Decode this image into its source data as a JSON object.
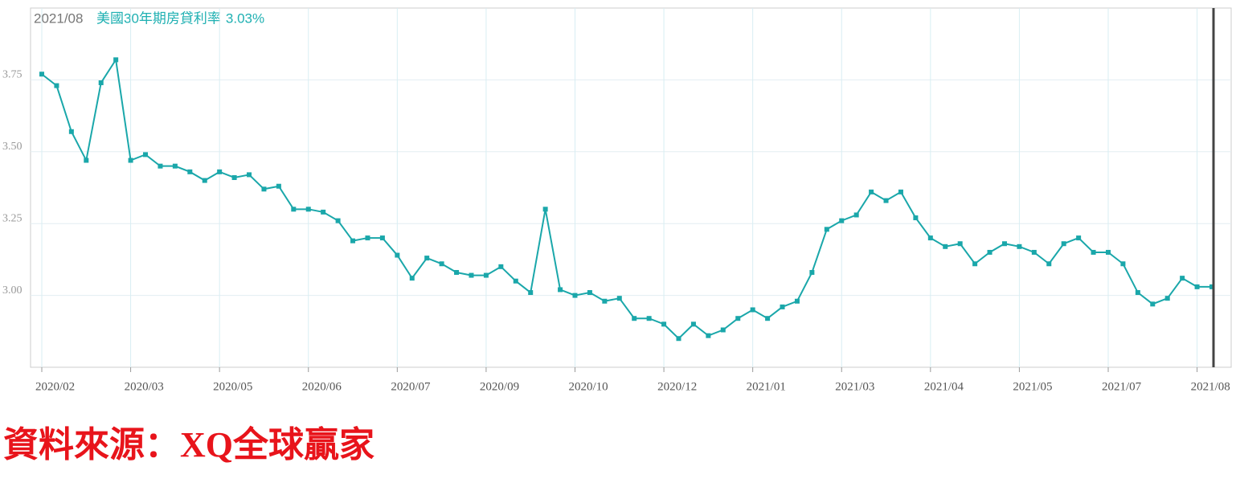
{
  "chart_data": {
    "type": "line",
    "cursor": {
      "label": "2021/08",
      "value_label": "3.03%"
    },
    "categories": [
      "2020/02",
      null,
      null,
      null,
      null,
      null,
      "2020/03",
      null,
      null,
      null,
      null,
      null,
      "2020/05",
      null,
      null,
      null,
      null,
      null,
      "2020/06",
      null,
      null,
      null,
      null,
      null,
      "2020/07",
      null,
      null,
      null,
      null,
      null,
      "2020/09",
      null,
      null,
      null,
      null,
      null,
      "2020/10",
      null,
      null,
      null,
      null,
      null,
      "2020/12",
      null,
      null,
      null,
      null,
      null,
      "2021/01",
      null,
      null,
      null,
      null,
      null,
      "2021/03",
      null,
      null,
      null,
      null,
      null,
      "2021/04",
      null,
      null,
      null,
      null,
      null,
      "2021/05",
      null,
      null,
      null,
      null,
      null,
      "2021/07",
      null,
      null,
      null,
      null,
      null,
      "2021/08",
      null
    ],
    "series": [
      {
        "name": "美國30年期房貸利率",
        "color": "#1aa7aa",
        "values": [
          3.77,
          3.73,
          3.57,
          3.47,
          3.74,
          3.82,
          3.47,
          3.49,
          3.45,
          3.45,
          3.43,
          3.4,
          3.43,
          3.41,
          3.42,
          3.37,
          3.38,
          3.3,
          3.3,
          3.29,
          3.26,
          3.19,
          3.2,
          3.2,
          3.14,
          3.06,
          3.13,
          3.11,
          3.08,
          3.07,
          3.07,
          3.1,
          3.05,
          3.01,
          3.3,
          3.02,
          3.0,
          3.01,
          2.98,
          2.99,
          2.92,
          2.92,
          2.9,
          2.85,
          2.9,
          2.86,
          2.88,
          2.92,
          2.95,
          2.92,
          2.96,
          2.98,
          3.08,
          3.23,
          3.26,
          3.28,
          3.36,
          3.33,
          3.36,
          3.27,
          3.2,
          3.17,
          3.18,
          3.11,
          3.15,
          3.18,
          3.17,
          3.15,
          3.11,
          3.18,
          3.2,
          3.15,
          3.15,
          3.11,
          3.01,
          2.97,
          2.99,
          3.06,
          3.03,
          3.03
        ]
      }
    ],
    "ylim": [
      2.75,
      4.0
    ],
    "yticks": [
      {
        "value": 3,
        "label": "3.00"
      },
      {
        "value": 3.25,
        "label": "3.25"
      },
      {
        "value": 3.5,
        "label": "3.50"
      },
      {
        "value": 3.75,
        "label": "3.75"
      }
    ],
    "grid": true
  },
  "source": "資料來源：XQ全球贏家"
}
